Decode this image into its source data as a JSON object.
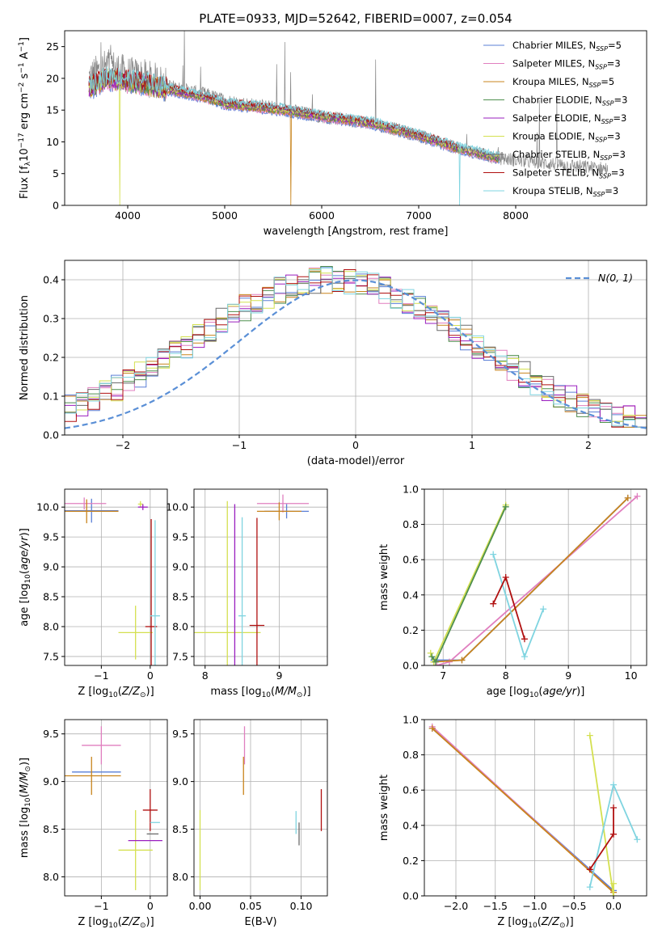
{
  "figure": {
    "title": "PLATE=0933, MJD=52642, FIBERID=0007, z=0.054"
  },
  "series_styles": [
    {
      "name": "Chabrier MILES, N$_{SSP}$=5",
      "color": "#5a7fd6"
    },
    {
      "name": "Salpeter MILES, N$_{SSP}$=3",
      "color": "#e07fbf"
    },
    {
      "name": "Kroupa MILES, N$_{SSP}$=5",
      "color": "#c8841c"
    },
    {
      "name": "Chabrier ELODIE, N$_{SSP}$=3",
      "color": "#4e8f4e"
    },
    {
      "name": "Salpeter ELODIE, N$_{SSP}$=3",
      "color": "#9a1fbf"
    },
    {
      "name": "Kroupa ELODIE, N$_{SSP}$=3",
      "color": "#d4e050"
    },
    {
      "name": "Chabrier STELIB, N$_{SSP}$=3",
      "color": "#6b6b6b"
    },
    {
      "name": "Salpeter STELIB, N$_{SSP}$=3",
      "color": "#b01010"
    },
    {
      "name": "Kroupa STELIB, N$_{SSP}$=3",
      "color": "#7fd4e0"
    }
  ],
  "chart_data": [
    {
      "id": "spectrum",
      "type": "line",
      "xlabel": "wavelength [Angstrom, rest frame]",
      "ylabel": "Flux [f_λ10^-17 erg cm^-2 s^-1 A^-1]",
      "xlim": [
        3350,
        9350
      ],
      "ylim": [
        0,
        27.5
      ],
      "xticks": [
        4000,
        5000,
        6000,
        7000,
        8000
      ],
      "yticks": [
        0,
        5,
        10,
        15,
        20,
        25
      ],
      "legend": "upper-right",
      "legend_entries": [
        {
          "label": "Chabrier MILES, N",
          "sub": "SSP",
          "tail": "=5"
        },
        {
          "label": "Salpeter MILES, N",
          "sub": "SSP",
          "tail": "=3"
        },
        {
          "label": "Kroupa MILES, N",
          "sub": "SSP",
          "tail": "=5"
        },
        {
          "label": "Chabrier ELODIE, N",
          "sub": "SSP",
          "tail": "=3"
        },
        {
          "label": "Salpeter ELODIE, N",
          "sub": "SSP",
          "tail": "=3"
        },
        {
          "label": "Kroupa ELODIE, N",
          "sub": "SSP",
          "tail": "=3"
        },
        {
          "label": "Chabrier STELIB, N",
          "sub": "SSP",
          "tail": "=3"
        },
        {
          "label": "Salpeter STELIB, N",
          "sub": "SSP",
          "tail": "=3"
        },
        {
          "label": "Kroupa STELIB, N",
          "sub": "SSP",
          "tail": "=3"
        }
      ],
      "continuum": [
        [
          3600,
          18.5
        ],
        [
          3800,
          20
        ],
        [
          4000,
          19.5
        ],
        [
          4200,
          19
        ],
        [
          4500,
          18
        ],
        [
          4800,
          17
        ],
        [
          5000,
          16
        ],
        [
          5300,
          15.5
        ],
        [
          5600,
          15
        ],
        [
          6000,
          14
        ],
        [
          6500,
          13
        ],
        [
          7000,
          11
        ],
        [
          7400,
          9
        ],
        [
          7600,
          8.3
        ],
        [
          7800,
          7.5
        ]
      ],
      "data_continuum": [
        [
          3600,
          20
        ],
        [
          3800,
          22
        ],
        [
          4000,
          20.5
        ],
        [
          4200,
          20
        ],
        [
          4500,
          18.5
        ],
        [
          4800,
          17.5
        ],
        [
          5000,
          16.5
        ],
        [
          5300,
          15.8
        ],
        [
          5600,
          15.2
        ],
        [
          6000,
          14
        ],
        [
          6500,
          13
        ],
        [
          7000,
          11
        ],
        [
          7400,
          9
        ],
        [
          7800,
          7.5
        ],
        [
          8200,
          6.8
        ],
        [
          8600,
          6.2
        ],
        [
          8900,
          5.8
        ]
      ]
    },
    {
      "id": "residuals",
      "type": "step",
      "xlabel": "(data-model)/error",
      "ylabel": "Normed distribution",
      "xlim": [
        -2.5,
        2.5
      ],
      "ylim": [
        0,
        0.45
      ],
      "xticks": [
        -2,
        -1,
        0,
        1,
        2
      ],
      "yticks": [
        0.0,
        0.1,
        0.2,
        0.3,
        0.4
      ],
      "legend": "upper-right",
      "legend_label": "N(0, 1)",
      "gaussian": {
        "mean": 0,
        "sigma": 1,
        "color": "#5a8fd6"
      }
    },
    {
      "id": "age_vs_Z",
      "type": "errorbar",
      "xlabel": "Z [log10(Z/Z⊙)]",
      "ylabel": "age [log10(age/yr)]",
      "xlim": [
        -1.75,
        0.35
      ],
      "ylim": [
        7.35,
        10.3
      ],
      "xticks": [
        -1,
        0
      ],
      "yticks": [
        7.5,
        8.0,
        8.5,
        9.0,
        9.5,
        10.0
      ]
    },
    {
      "id": "age_vs_mass",
      "type": "errorbar",
      "xlabel": "mass [log10(M/M⊙)]",
      "ylabel": "",
      "xlim": [
        7.85,
        9.65
      ],
      "ylim": [
        7.35,
        10.3
      ],
      "xticks": [
        8,
        9
      ],
      "yticks": [
        7.5,
        8.0,
        8.5,
        9.0,
        9.5,
        10.0
      ]
    },
    {
      "id": "weight_vs_age",
      "type": "line",
      "xlabel": "age [log10(age/yr)]",
      "ylabel": "mass weight",
      "xlim": [
        6.7,
        10.25
      ],
      "ylim": [
        0,
        1
      ],
      "xticks": [
        7,
        8,
        9,
        10
      ],
      "yticks": [
        0.0,
        0.2,
        0.4,
        0.6,
        0.8,
        1.0
      ]
    },
    {
      "id": "mass_vs_Z",
      "type": "errorbar",
      "xlabel": "Z [log10(Z/Z⊙)]",
      "ylabel": "mass [log10(M/M⊙)]",
      "xlim": [
        -1.75,
        0.35
      ],
      "ylim": [
        7.8,
        9.65
      ],
      "xticks": [
        -1,
        0
      ],
      "yticks": [
        8.0,
        8.5,
        9.0,
        9.5
      ]
    },
    {
      "id": "mass_vs_EBV",
      "type": "errorbar",
      "xlabel": "E(B-V)",
      "ylabel": "",
      "xlim": [
        -0.006,
        0.126
      ],
      "ylim": [
        7.8,
        9.65
      ],
      "xticks": [
        0.0,
        0.05,
        0.1
      ],
      "yticks": [
        8.0,
        8.5,
        9.0,
        9.5
      ]
    },
    {
      "id": "weight_vs_Z",
      "type": "line",
      "xlabel": "Z [log10(Z/Z⊙)]",
      "ylabel": "mass weight",
      "xlim": [
        -2.4,
        0.42
      ],
      "ylim": [
        0,
        1
      ],
      "xticks": [
        -2.0,
        -1.5,
        -1.0,
        -0.5,
        0.0
      ],
      "yticks": [
        0.0,
        0.2,
        0.4,
        0.6,
        0.8,
        1.0
      ]
    }
  ],
  "errorbars": {
    "age_vs_Z": [
      {
        "s": 0,
        "x": -1.2,
        "y": 9.94,
        "xe": 0.55,
        "ye": 0.2
      },
      {
        "s": 1,
        "x": -1.35,
        "y": 10.06,
        "xe": 0.45,
        "ye": 0.1
      },
      {
        "s": 2,
        "x": -1.3,
        "y": 9.93,
        "xe": 0.65,
        "ye": 0.2
      },
      {
        "s": 5,
        "x": -0.3,
        "y": 7.9,
        "xe": 0.35,
        "ye": 0.45
      },
      {
        "s": 5,
        "x": -0.2,
        "y": 10.05,
        "xe": 0.05,
        "ye": 0.05
      },
      {
        "s": 4,
        "x": -0.15,
        "y": 10.0,
        "xe": 0.1,
        "ye": 0.05
      },
      {
        "s": 7,
        "x": 0.02,
        "y": 8.0,
        "xe": 0.12,
        "ye": 1.8
      },
      {
        "s": 8,
        "x": 0.1,
        "y": 8.18,
        "xe": 0.1,
        "ye": 1.6
      },
      {
        "s": 6,
        "x": 0.15,
        "y": 9.82,
        "xe": 0.0,
        "ye": 0.0
      }
    ],
    "age_vs_mass": [
      {
        "s": 5,
        "x": 8.3,
        "y": 7.9,
        "xe": 0.45,
        "ye": 2.2
      },
      {
        "s": 4,
        "x": 8.4,
        "y": 7.9,
        "xe": 0.0,
        "ye": 2.15
      },
      {
        "s": 8,
        "x": 8.5,
        "y": 8.18,
        "xe": 0.05,
        "ye": 1.65
      },
      {
        "s": 7,
        "x": 8.7,
        "y": 8.02,
        "xe": 0.1,
        "ye": 1.8
      },
      {
        "s": 0,
        "x": 9.1,
        "y": 9.93,
        "xe": 0.3,
        "ye": 0.12
      },
      {
        "s": 1,
        "x": 9.05,
        "y": 10.06,
        "xe": 0.35,
        "ye": 0.15
      },
      {
        "s": 2,
        "x": 9.0,
        "y": 9.93,
        "xe": 0.3,
        "ye": 0.15
      }
    ],
    "weight_vs_age": [
      {
        "s": 0,
        "pts": [
          [
            6.85,
            0.03
          ],
          [
            7.3,
            0.03
          ],
          [
            9.95,
            0.95
          ]
        ]
      },
      {
        "s": 1,
        "pts": [
          [
            6.9,
            0.0
          ],
          [
            7.1,
            0.02
          ],
          [
            10.1,
            0.96
          ]
        ]
      },
      {
        "s": 2,
        "pts": [
          [
            6.85,
            0.02
          ],
          [
            7.3,
            0.03
          ],
          [
            9.95,
            0.95
          ]
        ]
      },
      {
        "s": 5,
        "pts": [
          [
            6.8,
            0.07
          ],
          [
            6.85,
            0.02
          ],
          [
            8.0,
            0.91
          ]
        ]
      },
      {
        "s": 3,
        "pts": [
          [
            6.82,
            0.05
          ],
          [
            6.88,
            0.02
          ],
          [
            8.0,
            0.9
          ]
        ]
      },
      {
        "s": 8,
        "pts": [
          [
            7.8,
            0.63
          ],
          [
            8.3,
            0.05
          ],
          [
            8.6,
            0.32
          ]
        ]
      },
      {
        "s": 7,
        "pts": [
          [
            7.8,
            0.35
          ],
          [
            8.0,
            0.5
          ],
          [
            8.3,
            0.15
          ]
        ]
      }
    ],
    "mass_vs_Z": [
      {
        "s": 0,
        "x": -1.1,
        "y": 9.1,
        "xe": 0.5,
        "ye": 0.0
      },
      {
        "s": 1,
        "x": -1.0,
        "y": 9.38,
        "xe": 0.4,
        "ye": 0.2
      },
      {
        "s": 2,
        "x": -1.2,
        "y": 9.06,
        "xe": 0.6,
        "ye": 0.2
      },
      {
        "s": 5,
        "x": -0.3,
        "y": 8.28,
        "xe": 0.35,
        "ye": 0.42
      },
      {
        "s": 4,
        "x": -0.1,
        "y": 8.38,
        "xe": 0.35,
        "ye": 0.0
      },
      {
        "s": 7,
        "x": 0.0,
        "y": 8.7,
        "xe": 0.15,
        "ye": 0.22
      },
      {
        "s": 8,
        "x": 0.1,
        "y": 8.57,
        "xe": 0.1,
        "ye": 0.0
      },
      {
        "s": 6,
        "x": 0.05,
        "y": 8.45,
        "xe": 0.12,
        "ye": 0.0
      }
    ],
    "mass_vs_EBV": [
      {
        "s": 5,
        "x": 0.0,
        "y": 8.28,
        "xe": 0.0,
        "ye": 0.42
      },
      {
        "s": 1,
        "x": 0.044,
        "y": 9.38,
        "xe": 0.0,
        "ye": 0.2
      },
      {
        "s": 2,
        "x": 0.043,
        "y": 9.06,
        "xe": 0.0,
        "ye": 0.2
      },
      {
        "s": 8,
        "x": 0.095,
        "y": 8.57,
        "xe": 0.0,
        "ye": 0.12
      },
      {
        "s": 6,
        "x": 0.098,
        "y": 8.45,
        "xe": 0.0,
        "ye": 0.12
      },
      {
        "s": 7,
        "x": 0.12,
        "y": 8.7,
        "xe": 0.0,
        "ye": 0.22
      }
    ],
    "weight_vs_Z": [
      {
        "s": 0,
        "pts": [
          [
            -2.3,
            0.95
          ],
          [
            0.0,
            0.03
          ]
        ]
      },
      {
        "s": 1,
        "pts": [
          [
            -2.3,
            0.96
          ],
          [
            0.0,
            0.02
          ]
        ]
      },
      {
        "s": 2,
        "pts": [
          [
            -2.3,
            0.95
          ],
          [
            0.0,
            0.02
          ]
        ]
      },
      {
        "s": 5,
        "pts": [
          [
            -0.3,
            0.91
          ],
          [
            0.0,
            0.0
          ],
          [
            0.0,
            0.07
          ]
        ]
      },
      {
        "s": 8,
        "pts": [
          [
            -0.3,
            0.05
          ],
          [
            0.0,
            0.63
          ],
          [
            0.3,
            0.32
          ]
        ]
      },
      {
        "s": 7,
        "pts": [
          [
            -0.3,
            0.15
          ],
          [
            0.0,
            0.35
          ],
          [
            0.0,
            0.5
          ]
        ]
      }
    ]
  }
}
